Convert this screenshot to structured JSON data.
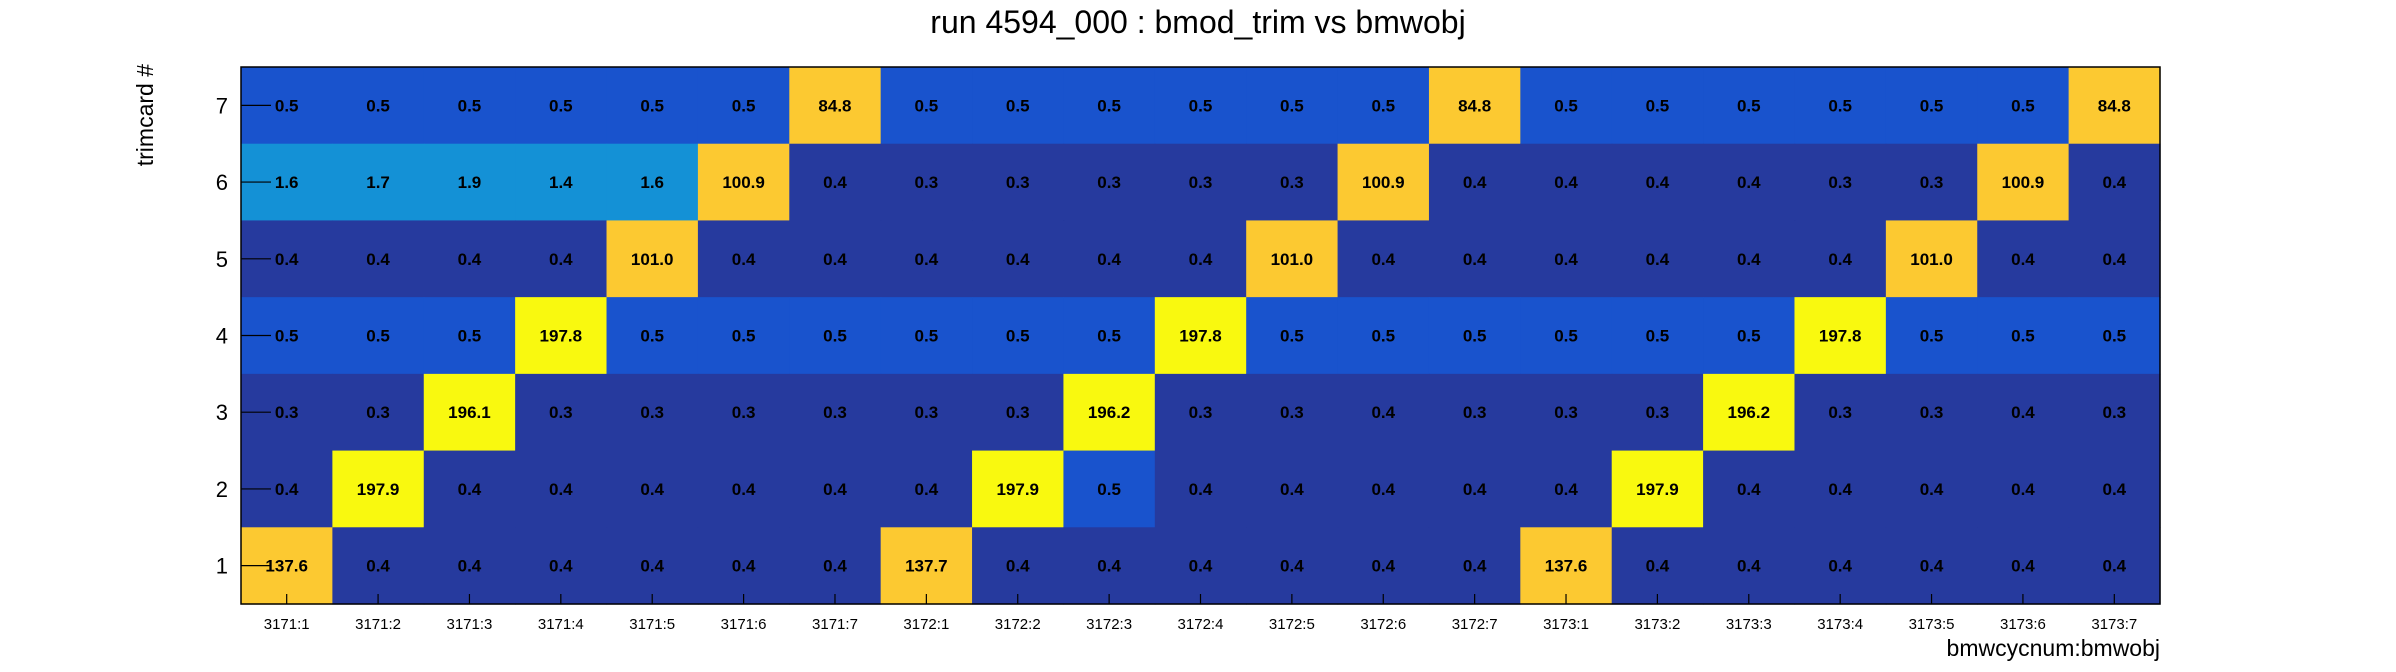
{
  "chart_data": {
    "type": "heatmap",
    "title": "run 4594_000 : bmod_trim vs bmwobj",
    "xlabel": "bmwcycnum:bmwobj",
    "ylabel": "trimcard #",
    "x_categories": [
      "3171:1",
      "3171:2",
      "3171:3",
      "3171:4",
      "3171:5",
      "3171:6",
      "3171:7",
      "3172:1",
      "3172:2",
      "3172:3",
      "3172:4",
      "3172:5",
      "3172:6",
      "3172:7",
      "3173:1",
      "3173:2",
      "3173:3",
      "3173:4",
      "3173:5",
      "3173:6",
      "3173:7"
    ],
    "y_categories": [
      "1",
      "2",
      "3",
      "4",
      "5",
      "6",
      "7"
    ],
    "rows": [
      {
        "y": "7",
        "values": [
          "0.5",
          "0.5",
          "0.5",
          "0.5",
          "0.5",
          "0.5",
          "84.8",
          "0.5",
          "0.5",
          "0.5",
          "0.5",
          "0.5",
          "0.5",
          "84.8",
          "0.5",
          "0.5",
          "0.5",
          "0.5",
          "0.5",
          "0.5",
          "84.8"
        ]
      },
      {
        "y": "6",
        "values": [
          "1.6",
          "1.7",
          "1.9",
          "1.4",
          "1.6",
          "100.9",
          "0.4",
          "0.3",
          "0.3",
          "0.3",
          "0.3",
          "0.3",
          "100.9",
          "0.4",
          "0.4",
          "0.4",
          "0.4",
          "0.3",
          "0.3",
          "100.9",
          "0.4"
        ]
      },
      {
        "y": "5",
        "values": [
          "0.4",
          "0.4",
          "0.4",
          "0.4",
          "101.0",
          "0.4",
          "0.4",
          "0.4",
          "0.4",
          "0.4",
          "0.4",
          "101.0",
          "0.4",
          "0.4",
          "0.4",
          "0.4",
          "0.4",
          "0.4",
          "101.0",
          "0.4",
          "0.4"
        ]
      },
      {
        "y": "4",
        "values": [
          "0.5",
          "0.5",
          "0.5",
          "197.8",
          "0.5",
          "0.5",
          "0.5",
          "0.5",
          "0.5",
          "0.5",
          "197.8",
          "0.5",
          "0.5",
          "0.5",
          "0.5",
          "0.5",
          "0.5",
          "197.8",
          "0.5",
          "0.5",
          "0.5"
        ]
      },
      {
        "y": "3",
        "values": [
          "0.3",
          "0.3",
          "196.1",
          "0.3",
          "0.3",
          "0.3",
          "0.3",
          "0.3",
          "0.3",
          "196.2",
          "0.3",
          "0.3",
          "0.4",
          "0.3",
          "0.3",
          "0.3",
          "196.2",
          "0.3",
          "0.3",
          "0.4",
          "0.3"
        ]
      },
      {
        "y": "2",
        "values": [
          "0.4",
          "197.9",
          "0.4",
          "0.4",
          "0.4",
          "0.4",
          "0.4",
          "0.4",
          "197.9",
          "0.5",
          "0.4",
          "0.4",
          "0.4",
          "0.4",
          "0.4",
          "197.9",
          "0.4",
          "0.4",
          "0.4",
          "0.4",
          "0.4"
        ]
      },
      {
        "y": "1",
        "values": [
          "137.6",
          "0.4",
          "0.4",
          "0.4",
          "0.4",
          "0.4",
          "0.4",
          "137.7",
          "0.4",
          "0.4",
          "0.4",
          "0.4",
          "0.4",
          "0.4",
          "137.6",
          "0.4",
          "0.4",
          "0.4",
          "0.4",
          "0.4",
          "0.4"
        ]
      }
    ],
    "colors": {
      "very_low": "#263a9e",
      "low": "#1953cd",
      "mid": "#1491d6",
      "high": "#fcc931",
      "very_high": "#f9f90f"
    },
    "grid": false,
    "legend": "none"
  }
}
